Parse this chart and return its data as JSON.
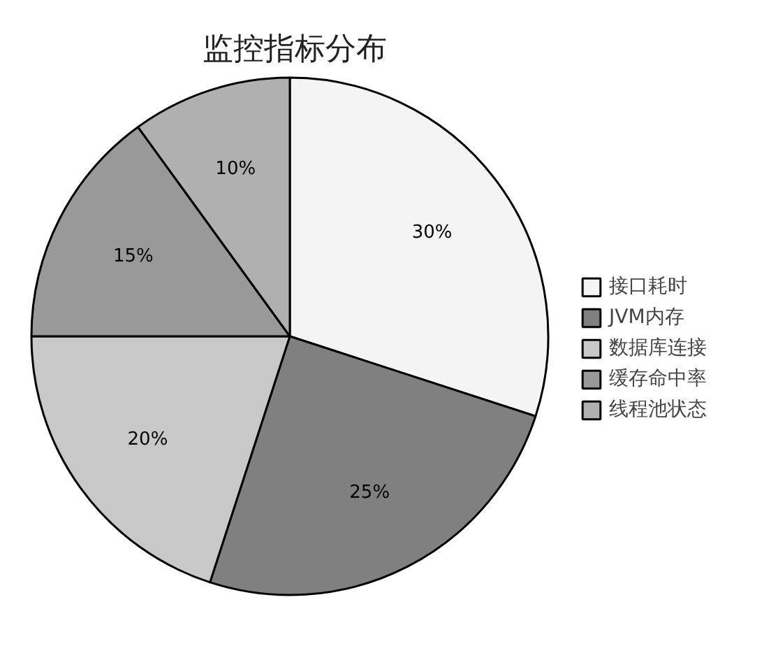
{
  "chart_data": {
    "type": "pie",
    "title": "监控指标分布",
    "categories": [
      "接口耗时",
      "JVM内存",
      "数据库连接",
      "缓存命中率",
      "线程池状态"
    ],
    "values": [
      30,
      25,
      20,
      15,
      10
    ],
    "colors": [
      "#f4f4f4",
      "#808080",
      "#c8c8c8",
      "#999999",
      "#b0b0b0"
    ],
    "value_labels": [
      "30%",
      "25%",
      "20%",
      "15%",
      "10%"
    ],
    "legend": "right"
  }
}
